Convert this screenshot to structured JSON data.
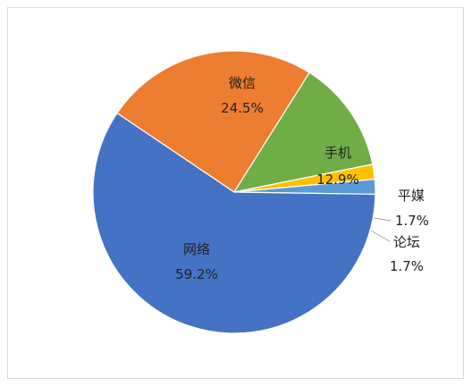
{
  "chart_data": {
    "type": "pie",
    "slices": [
      {
        "label": "微信",
        "value": 24.5,
        "display": "24.5%",
        "color": "#ED7D31"
      },
      {
        "label": "手机",
        "value": 12.9,
        "display": "12.9%",
        "color": "#70AD47"
      },
      {
        "label": "平媒",
        "value": 1.7,
        "display": "1.7%",
        "color": "#FFC000"
      },
      {
        "label": "论坛",
        "value": 1.7,
        "display": "1.7%",
        "color": "#5B9BD5"
      },
      {
        "label": "网络",
        "value": 59.2,
        "display": "59.2%",
        "color": "#4472C4"
      }
    ],
    "border_color": "#D9D9D9",
    "leader_line_color": "#A6A6A6"
  }
}
